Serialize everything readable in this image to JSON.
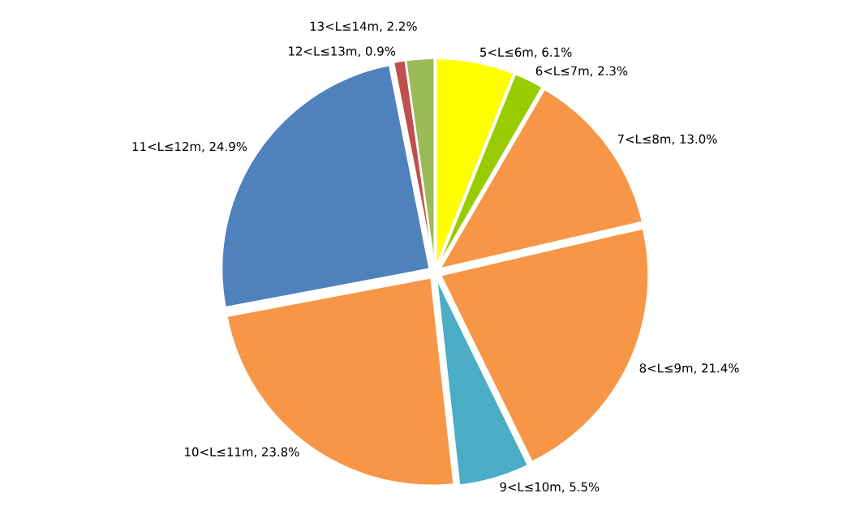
{
  "chart_data": {
    "type": "pie",
    "categories": [
      "5<L≤6m",
      "6<L≤7m",
      "7<L≤8m",
      "8<L≤9m",
      "9<L≤10m",
      "10<L≤11m",
      "11<L≤12m",
      "12<L≤13m",
      "13<L≤14m"
    ],
    "values": [
      6.1,
      2.3,
      13.0,
      21.4,
      5.5,
      23.8,
      24.9,
      0.9,
      2.2
    ],
    "value_labels": [
      ", 6.1%",
      ", 2.3%",
      ", 13.0%",
      ", 21.4%",
      ", 5.5%",
      ", 23.8%",
      ", 24.9%",
      ", 0.9%",
      ", 2.2%"
    ],
    "colors": [
      "#ffff00",
      "#99cc00",
      "#f79646",
      "#f79646",
      "#4bacc6",
      "#f79646",
      "#4f81bd",
      "#c0504d",
      "#9bbb59"
    ]
  }
}
